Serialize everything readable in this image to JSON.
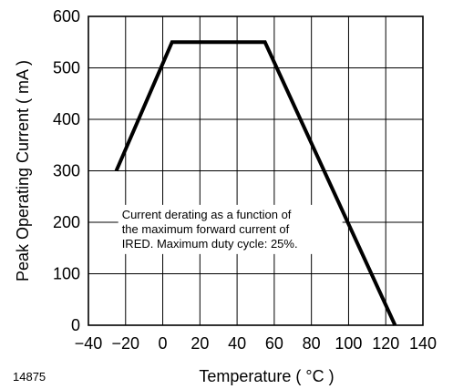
{
  "chart_data": {
    "type": "line",
    "title": "",
    "xlabel": "Temperature ( °C )",
    "ylabel": "Peak Operating Current ( mA )",
    "xlim": [
      -40,
      140
    ],
    "ylim": [
      0,
      600
    ],
    "x_ticks": [
      -40,
      -20,
      0,
      20,
      40,
      60,
      80,
      100,
      120,
      140
    ],
    "y_ticks": [
      0,
      100,
      200,
      300,
      400,
      500,
      600
    ],
    "x_tick_labels": [
      "−40",
      "−20",
      "0",
      "20",
      "40",
      "60",
      "80",
      "100",
      "120",
      "140"
    ],
    "y_tick_labels": [
      "0",
      "100",
      "200",
      "300",
      "400",
      "500",
      "600"
    ],
    "grid": true,
    "series": [
      {
        "x": [
          -25,
          5,
          55,
          125
        ],
        "y": [
          300,
          550,
          550,
          0
        ]
      }
    ],
    "annotation": {
      "lines": [
        "Current derating as a function of",
        "the maximum forward current of",
        "IRED. Maximum duty cycle: 25%."
      ],
      "anchor_x": -22,
      "anchor_y": 225
    },
    "figure_id": "14875"
  }
}
